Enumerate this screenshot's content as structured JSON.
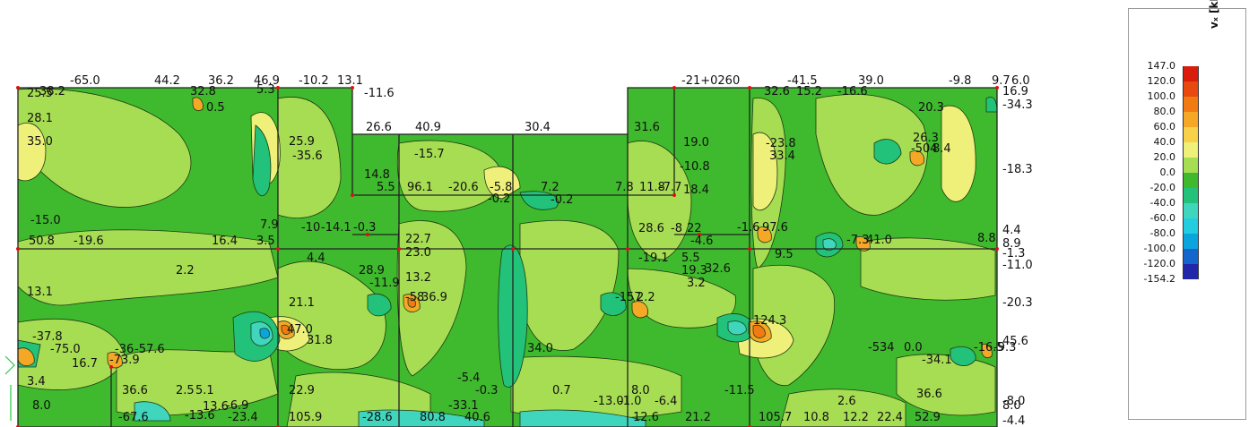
{
  "legend": {
    "title": "vₓ [kN/m]",
    "labels": [
      "147.0",
      "120.0",
      "100.0",
      "80.0",
      "60.0",
      "40.0",
      "20.0",
      "0.0",
      "-20.0",
      "-40.0",
      "-60.0",
      "-80.0",
      "-100.0",
      "-120.0",
      "-154.2"
    ],
    "colors": [
      "#d91c0c",
      "#e8490f",
      "#f27a12",
      "#f5a826",
      "#f7d147",
      "#eef07a",
      "#a7dd52",
      "#3fb92d",
      "#22c27a",
      "#3fd6bd",
      "#22cde0",
      "#0ba5de",
      "#1466cc",
      "#2226a8"
    ]
  },
  "top_values": [
    {
      "t": "-65.0"
    },
    {
      "t": "44.2"
    },
    {
      "t": "36.2"
    },
    {
      "t": "46.9"
    },
    {
      "t": "-10.2"
    },
    {
      "t": "13.1"
    },
    {
      "t": "26.6"
    },
    {
      "t": "40.9"
    },
    {
      "t": "30.4"
    },
    {
      "t": "31.6"
    },
    {
      "t": "-21+0260"
    },
    {
      "t": "-41.5"
    },
    {
      "t": "39.0"
    },
    {
      "t": "-9.8"
    },
    {
      "t": "9.7"
    },
    {
      "t": "6.0"
    }
  ],
  "right_values": [
    "16.9",
    "-34.3",
    "-18.3",
    "4.4",
    "8.9",
    "-1.3",
    "-11.0",
    "-20.3",
    "45.6",
    "8.0",
    "-4.4"
  ],
  "field_values": [
    "38.2",
    "32.8",
    "0.5",
    "5.3",
    "-11.6",
    "25.5",
    "28.1",
    "35.0",
    "25.9",
    "-35.6",
    "-15.7",
    "14.8",
    "5.5",
    "96.1",
    "-20.6",
    "-5.8",
    "-0.2",
    "7.2",
    "-0.2",
    "7.8",
    "11.8",
    "-7.7",
    "19.0",
    "-10.8",
    "18.4",
    "32.6",
    "15.2",
    "-16.6",
    "20.3",
    "-23.8",
    "33.4",
    "26.3",
    "-504",
    "8.4",
    "-15.0",
    "50.8",
    "-19.6",
    "16.4",
    "3.5",
    "7.9",
    "-10",
    "-14.1",
    "-0.3",
    "22.7",
    "23.0",
    "28.6",
    "-8",
    "22",
    "-1.6",
    "97.6",
    "-4.6",
    "9.5",
    "-7.3",
    "41.0",
    "8.8",
    "4.4",
    "2.2",
    "13.1",
    "28.9",
    "13.2",
    "-11.9",
    "-19.1",
    "5.5",
    "19.3",
    "32.6",
    "3.2",
    "21.1",
    "36.9",
    "-58",
    "-157",
    "2.2",
    "-37.8",
    "-75.0",
    "-36",
    "-57.6",
    "16.7",
    "-73.9",
    "47.0",
    "31.8",
    "124.3",
    "34.0",
    "-5.4",
    "-0.3",
    "3.4",
    "8.0",
    "36.6",
    "2.5",
    "5.1",
    "-6.9",
    "-13.6",
    "-33.1",
    "0.7",
    "-13.0",
    "-1.0",
    "8.0",
    "-6.4",
    "-11.5",
    "-534",
    "0.0",
    "-34.1",
    "2.6",
    "36.6",
    "-8.0",
    "-67.6",
    "-23.4",
    "105.9",
    "-28.6",
    "80.8",
    "40.6",
    "21.2",
    "105.7",
    "10.8",
    "12.2",
    "22.4",
    "52.9",
    "-16.5",
    "-9.3",
    "22.9",
    "13.6",
    "12.6"
  ]
}
